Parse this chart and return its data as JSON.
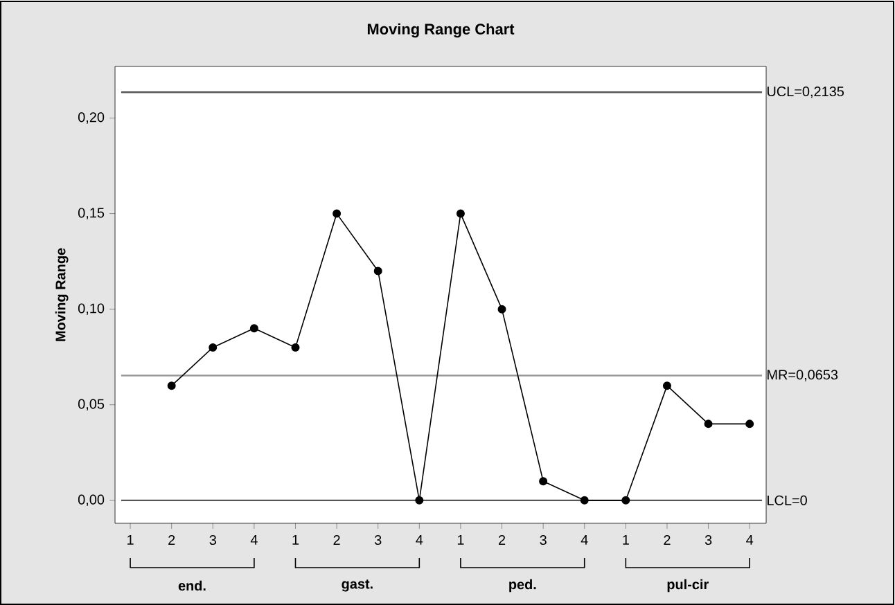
{
  "chart_data": {
    "type": "line",
    "title": "Moving Range Chart",
    "ylabel": "Moving Range",
    "categories": [
      "1",
      "2",
      "3",
      "4",
      "1",
      "2",
      "3",
      "4",
      "1",
      "2",
      "3",
      "4",
      "1",
      "2",
      "3",
      "4"
    ],
    "series": [
      {
        "color": "#000000",
        "values": [
          null,
          0.06,
          0.08,
          0.09,
          0.08,
          0.15,
          0.12,
          0.0,
          0.15,
          0.1,
          0.01,
          0.0,
          0.0,
          0.06,
          0.04,
          0.04
        ]
      }
    ],
    "ylim": [
      -0.012,
      0.227
    ],
    "yticks": [
      {
        "value": 0,
        "label": "0,00"
      },
      {
        "value": 0.05,
        "label": "0,05"
      },
      {
        "value": 0.1,
        "label": "0,10"
      },
      {
        "value": 0.15,
        "label": "0,15"
      },
      {
        "value": 0.2,
        "label": "0,20"
      }
    ],
    "ref_lines": [
      {
        "axis": "y",
        "value": 0.2135,
        "label": "UCL=0,2135",
        "color": "#555555"
      },
      {
        "axis": "y",
        "value": 0.0653,
        "label": "MR=0,0653",
        "color": "#999999"
      },
      {
        "axis": "y",
        "value": 0,
        "label": "LCL=0",
        "color": "#555555"
      }
    ],
    "annotations": [
      "end.",
      "gast.",
      "ped.",
      "pul-cir"
    ],
    "marker": "circle",
    "line_style": "solid",
    "grid": false
  }
}
